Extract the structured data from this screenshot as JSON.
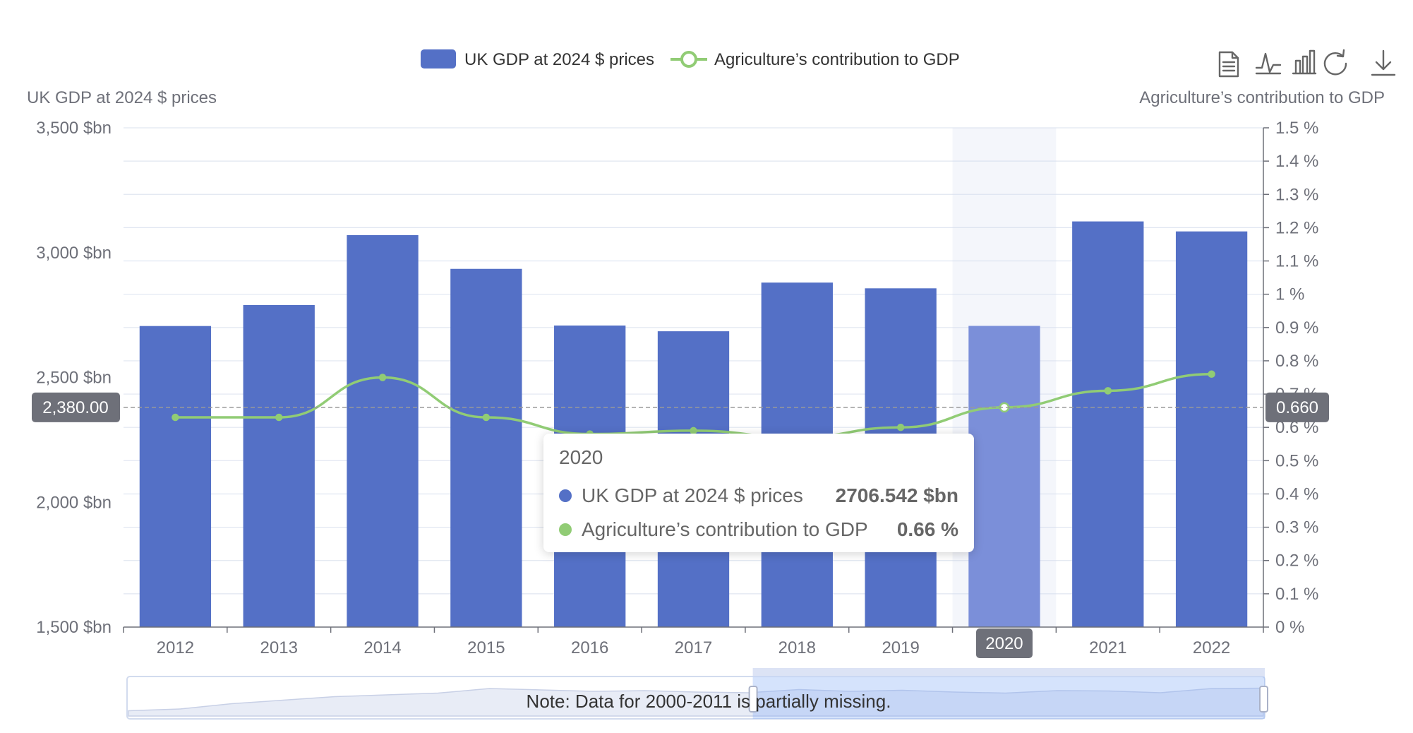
{
  "chart_data": {
    "type": "bar",
    "categories": [
      "2012",
      "2013",
      "2014",
      "2015",
      "2016",
      "2017",
      "2018",
      "2019",
      "2020",
      "2021",
      "2022"
    ],
    "series": [
      {
        "name": "UK GDP at 2024 $ prices",
        "type": "bar",
        "axis": "left",
        "values": [
          2706,
          2790,
          3070,
          2935,
          2708,
          2685,
          2880,
          2857,
          2706.542,
          3125,
          3085
        ]
      },
      {
        "name": "Agriculture’s contribution to GDP",
        "type": "line",
        "axis": "right",
        "values": [
          0.63,
          0.63,
          0.75,
          0.63,
          0.58,
          0.59,
          0.57,
          0.6,
          0.66,
          0.71,
          0.76
        ]
      }
    ],
    "y_left": {
      "title": "UK GDP at 2024 $ prices",
      "min": 1500,
      "max": 3500,
      "ticks": [
        "1,500 $bn",
        "2,000 $bn",
        "2,500 $bn",
        "3,000 $bn",
        "3,500 $bn"
      ]
    },
    "y_right": {
      "title": "Agriculture’s contribution to GDP",
      "min": 0,
      "max": 1.5,
      "ticks": [
        "0 %",
        "0.1 %",
        "0.2 %",
        "0.3 %",
        "0.4 %",
        "0.5 %",
        "0.6 %",
        "0.7 %",
        "0.8 %",
        "0.9 %",
        "1 %",
        "1.1 %",
        "1.2 %",
        "1.3 %",
        "1.4 %",
        "1.5 %"
      ]
    },
    "legend": {
      "placement": "top-center",
      "items": [
        "UK GDP at 2024 $ prices",
        "Agriculture’s contribution to GDP"
      ]
    },
    "crosshair": {
      "left_label": "2,380.00",
      "left_value": 2380,
      "right_label": "0.660",
      "category_label": "2020"
    },
    "highlighted_category": "2020",
    "colors": {
      "bar": "#5470c6",
      "bar_highlight": "#7b8fd9",
      "line": "#91cc75",
      "axis_text": "#6e7079",
      "grid": "#e0e6f1",
      "crosshair_label_bg": "#6e7079"
    },
    "tooltip": {
      "title": "2020",
      "rows": [
        {
          "name": "UK GDP at 2024 $ prices",
          "value": "2706.542 $bn"
        },
        {
          "name": "Agriculture’s contribution to GDP",
          "value": "0.66 %"
        }
      ]
    },
    "data_zoom": {
      "note": "Note: Data for 2000-2011 is partially missing.",
      "range_percent": [
        55,
        100
      ]
    }
  },
  "toolbox": {
    "icons": [
      "data-view-icon",
      "line-chart-icon",
      "bar-chart-icon",
      "restore-icon",
      "save-image-icon"
    ]
  }
}
